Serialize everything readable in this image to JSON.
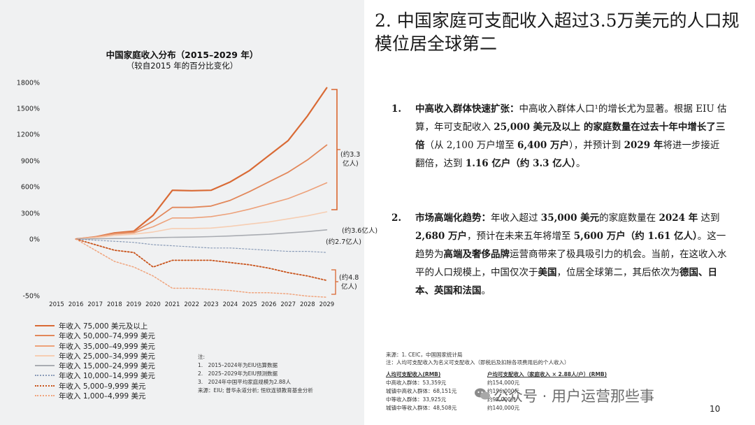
{
  "title": "2. 中国家庭可支配收入超过3.5万美元的人口规模位居全球第二",
  "chart_data": {
    "type": "line",
    "title": "中国家庭收入分布（2015–2029 年）",
    "subtitle": "（较自2015 年的百分比变化）",
    "x": [
      "2015",
      "2016",
      "2017",
      "2018",
      "2019",
      "2020",
      "2021",
      "2022",
      "2023",
      "2024",
      "2025",
      "2026",
      "2027",
      "2028",
      "2029"
    ],
    "yticks": [
      "1800%",
      "1500%",
      "1200%",
      "900%",
      "600%",
      "300%",
      "0%",
      "-50%"
    ],
    "series": [
      {
        "name": "年收入 75,000 美元及以上",
        "color": "#d96a35",
        "style": "solid",
        "width": 2.2,
        "values": [
          null,
          0,
          25,
          70,
          90,
          270,
          555,
          550,
          555,
          650,
          780,
          950,
          1120,
          1400,
          1720
        ]
      },
      {
        "name": "年收入 50,000–74,999 美元",
        "color": "#e2875a",
        "style": "solid",
        "width": 1.8,
        "values": [
          null,
          0,
          25,
          65,
          80,
          205,
          360,
          360,
          375,
          440,
          540,
          650,
          760,
          900,
          1070
        ]
      },
      {
        "name": "年收入 35,000–49,999 美元",
        "color": "#eda17a",
        "style": "solid",
        "width": 1.6,
        "values": [
          null,
          0,
          22,
          55,
          70,
          140,
          240,
          240,
          255,
          290,
          340,
          400,
          460,
          545,
          640
        ]
      },
      {
        "name": "年收入 25,000–34,999 美元",
        "color": "#f6cdb2",
        "style": "solid",
        "width": 1.6,
        "values": [
          null,
          0,
          15,
          40,
          55,
          80,
          120,
          120,
          125,
          145,
          170,
          195,
          230,
          265,
          310
        ]
      },
      {
        "name": "年收入 15,000–24,999 美元",
        "color": "#a9acb2",
        "style": "solid",
        "width": 1.6,
        "values": [
          null,
          0,
          3,
          6,
          8,
          15,
          20,
          22,
          28,
          35,
          45,
          55,
          70,
          85,
          105
        ]
      },
      {
        "name": "年收入 10,000–14,999 美元",
        "color": "#8a9cb8",
        "style": "dotted",
        "width": 1.2,
        "values": [
          null,
          0,
          -1,
          -2,
          -3,
          -5,
          -6,
          -7,
          -8,
          -8,
          -9,
          -10,
          -11,
          -11,
          -12
        ]
      },
      {
        "name": "年收入 5,000–9,999 美元",
        "color": "#c9541c",
        "style": "dotted",
        "width": 1.8,
        "values": [
          null,
          0,
          -5,
          -10,
          -12,
          -25,
          -19,
          -19,
          -19,
          -21,
          -23,
          -26,
          -30,
          -33,
          -37
        ]
      },
      {
        "name": "年收入 1,000–4,999 美元",
        "color": "#f0a57e",
        "style": "dotted",
        "width": 1.5,
        "values": [
          null,
          0,
          -10,
          -20,
          -25,
          -33,
          -44,
          -44,
          -45,
          -46,
          -48,
          -48,
          -49,
          -51,
          -52
        ]
      }
    ],
    "annotations": [
      "(约3.3亿人)",
      "(约3.6亿人)",
      "(约2.7亿人)",
      "(约4.8亿人)"
    ]
  },
  "notes": [
    "注:",
    "1.　2015–2024年为EIU估算数据",
    "2.　2025–2029年为EIU预测数据",
    "3.　2024年中国平均家庭规模为2.88人",
    "来源：EIU; 普华永道分析; 恒欣连锁教育基金分析"
  ],
  "b1": {
    "num": "1.",
    "label": "中高收入群体快速扩张：",
    "t1": "中高收入群体人口¹的增长尤为显著。根据 EIU 估算，年可支配收入 ",
    "h1": "25,000 美元及以上",
    "t2": " 的家庭数量在过去十年中增长了三倍",
    "t3": "（从 2,100 万户增至 ",
    "h2": "6,400 万户",
    "t4": "），并预计到 ",
    "h3": "2029 年",
    "t5": "将进一步接近翻倍，达到 ",
    "h4": "1.16 亿户（约 3.3 亿人）",
    "t6": "。"
  },
  "b2": {
    "num": "2.",
    "label": "市场高端化趋势：",
    "t1": "年收入超过 ",
    "h1": "35,000 美元",
    "t2": "的家庭数量在 ",
    "h2": "2024 年",
    "t3": " 达到 ",
    "h3": "2,680 万户",
    "t4": "，预计在未来五年将增至 ",
    "h4": "5,600 万户（约 1.61 亿人）",
    "t5": "。这一趋势为",
    "h5": "高端及奢侈品牌",
    "t6": "运营商带来了极具吸引力的机会。当前，在这收入水平的人口规模上，中国仅次于",
    "h6": "美国",
    "t7": "，位居全球第二，其后依次为",
    "h7": "德国、日本、英国和法国",
    "t8": "。"
  },
  "sources": [
    "来源：1. CEIC，中国国家统计局",
    "注：人均可支配收入为名义可支配收入（即税后及扣除各项费用后的个人收入）"
  ],
  "table": {
    "h1": "人均可支配收入(RMB)",
    "h2": "户均可支配收入（家庭收入 × 2.88人/户）(RMB)",
    "rows": [
      [
        "中高收入群体：53,359元",
        "约154,000元"
      ],
      [
        "城镇中高收入群体：68,151元",
        "约196,000元"
      ],
      [
        "中等收入群体：33,925元",
        "约98,000元"
      ],
      [
        "城镇中等收入群体：48,508元",
        "约140,000元"
      ]
    ]
  },
  "watermark": "公众号 · 用户运营那些事",
  "page_number": "10"
}
